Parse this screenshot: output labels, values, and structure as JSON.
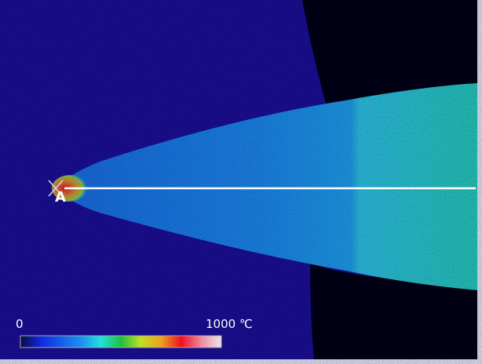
{
  "image": {
    "point_label": "A",
    "colorbar": {
      "min_label": "0",
      "max_label": "1000 ℃",
      "colors": [
        "#0a0a40",
        "#1028e0",
        "#1a90f0",
        "#20e0e0",
        "#20c040",
        "#c0e020",
        "#f0a020",
        "#f01020",
        "#f08aa0",
        "#e8e8e8"
      ]
    },
    "background_color": "#1e1090",
    "flame_color": "#1e90ee",
    "hot_core_color": "#e81818"
  }
}
